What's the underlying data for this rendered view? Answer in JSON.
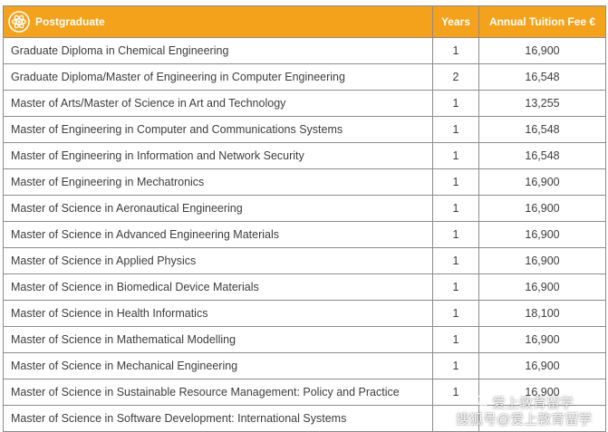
{
  "header": {
    "program_label": "Postgraduate",
    "years_label": "Years",
    "fee_label": "Annual Tuition Fee €",
    "icon": "atom-icon",
    "accent_color": "#f4a21c"
  },
  "rows": [
    {
      "program": "Graduate Diploma in Chemical Engineering",
      "years": "1",
      "fee": "16,900"
    },
    {
      "program": "Graduate Diploma/Master of Engineering in Computer Engineering",
      "years": "2",
      "fee": "16,548"
    },
    {
      "program": "Master of Arts/Master of Science in Art and Technology",
      "years": "1",
      "fee": "13,255"
    },
    {
      "program": "Master of Engineering in Computer and Communications Systems",
      "years": "1",
      "fee": "16,548"
    },
    {
      "program": "Master of Engineering in Information and Network Security",
      "years": "1",
      "fee": "16,548"
    },
    {
      "program": "Master of Engineering in Mechatronics",
      "years": "1",
      "fee": "16,900"
    },
    {
      "program": "Master of Science in Aeronautical Engineering",
      "years": "1",
      "fee": "16,900"
    },
    {
      "program": "Master of Science in Advanced Engineering Materials",
      "years": "1",
      "fee": "16,900"
    },
    {
      "program": "Master of Science in Applied Physics",
      "years": "1",
      "fee": "16,900"
    },
    {
      "program": "Master of Science in Biomedical Device Materials",
      "years": "1",
      "fee": "16,900"
    },
    {
      "program": "Master of Science in Health Informatics",
      "years": "1",
      "fee": "18,100"
    },
    {
      "program": "Master of Science in Mathematical Modelling",
      "years": "1",
      "fee": "16,900"
    },
    {
      "program": "Master of Science in Mechanical Engineering",
      "years": "1",
      "fee": "16,900"
    },
    {
      "program": "Master of Science in Sustainable Resource Management: Policy and Practice",
      "years": "1",
      "fee": "16,900"
    },
    {
      "program": "Master of Science in Software Development: International Systems",
      "years": "",
      "fee": ""
    }
  ],
  "watermark": {
    "line1": "爱上教育留学",
    "line2": "搜狐号@爱上教育留学",
    "icon": "wechat-icon"
  }
}
